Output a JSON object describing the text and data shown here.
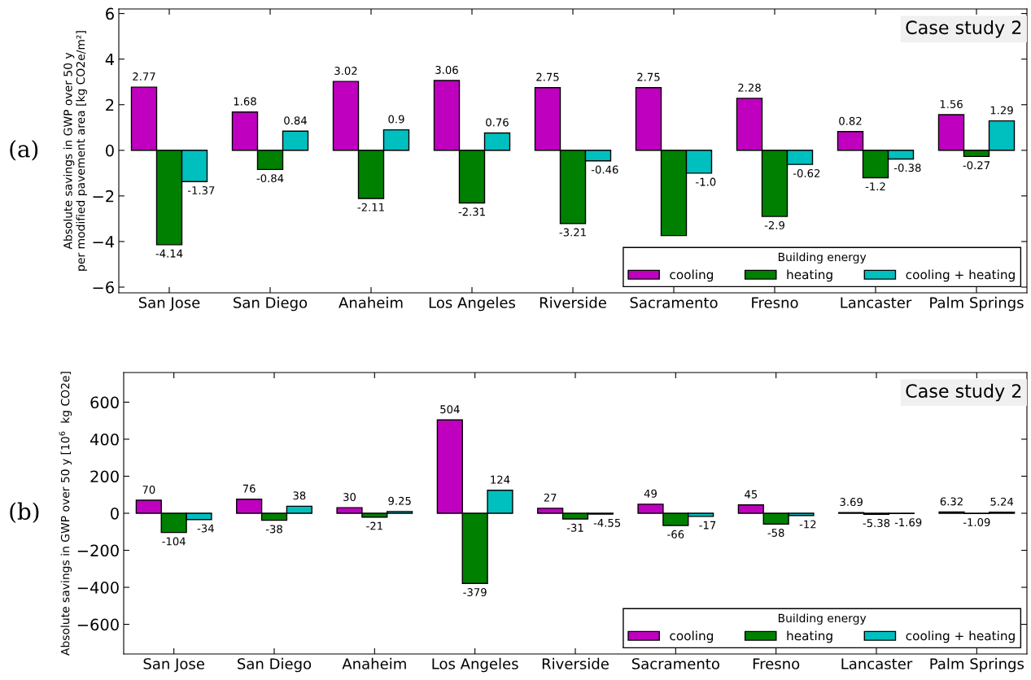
{
  "chart_data": [
    {
      "type": "bar",
      "ylabel": "Absolute savings in GWP over 50 y\nper modified pavement area [kg CO2e/m²]",
      "legend_title": "Building energy",
      "legend": "bottom right",
      "grid": false,
      "annotations": [
        "(a)",
        "Case study 2"
      ],
      "categories": [
        "San Jose",
        "San Diego",
        "Anaheim",
        "Los Angeles",
        "Riverside",
        "Sacramento",
        "Fresno",
        "Lancaster",
        "Palm Springs"
      ],
      "ylim": [
        -6.25,
        6.2
      ],
      "yticks": [
        -6,
        -4,
        -2,
        0,
        2,
        4,
        6
      ],
      "series": [
        {
          "name": "cooling",
          "color": "#bf00bf",
          "values": [
            2.77,
            1.68,
            3.02,
            3.06,
            2.75,
            2.75,
            2.28,
            0.82,
            1.56
          ],
          "value_labels": [
            "2.77",
            "1.68",
            "3.02",
            "3.06",
            "2.75",
            "2.75",
            "2.28",
            "0.82",
            "1.56"
          ]
        },
        {
          "name": "heating",
          "color": "#008000",
          "values": [
            -4.14,
            -0.84,
            -2.11,
            -2.31,
            -3.21,
            -3.74,
            -2.9,
            -1.2,
            -0.27
          ],
          "value_labels": [
            "-4.14",
            "-0.84",
            "-2.11",
            "-2.31",
            "-3.21",
            null,
            "-2.9",
            "-1.2",
            "-0.27"
          ]
        },
        {
          "name": "cooling + heating",
          "color": "#00bfbf",
          "values": [
            -1.37,
            0.84,
            0.9,
            0.76,
            -0.46,
            -1.0,
            -0.62,
            -0.38,
            1.29
          ],
          "value_labels": [
            "-1.37",
            "0.84",
            "0.9",
            "0.76",
            "-0.46",
            "-1.0",
            "-0.62",
            "-0.38",
            "1.29"
          ]
        }
      ]
    },
    {
      "type": "bar",
      "ylabel": "Absolute savings in GWP over 50 y [10$^{6}$  kg CO2e]",
      "legend_title": "Building energy",
      "legend": "bottom right",
      "grid": false,
      "annotations": [
        "(b)",
        "Case study 2"
      ],
      "categories": [
        "San Jose",
        "San Diego",
        "Anaheim",
        "Los Angeles",
        "Riverside",
        "Sacramento",
        "Fresno",
        "Lancaster",
        "Palm Springs"
      ],
      "ylim": [
        -760,
        760
      ],
      "yticks": [
        -600,
        -400,
        -200,
        0,
        200,
        400,
        600
      ],
      "series": [
        {
          "name": "cooling",
          "color": "#bf00bf",
          "values": [
            70,
            76,
            30,
            504,
            27,
            49,
            45,
            3.69,
            6.32
          ],
          "value_labels": [
            "70",
            "76",
            "30",
            "504",
            "27",
            "49",
            "45",
            "3.69",
            "6.32"
          ]
        },
        {
          "name": "heating",
          "color": "#008000",
          "values": [
            -104,
            -38,
            -21,
            -379,
            -31,
            -66,
            -58,
            -5.38,
            -1.09
          ],
          "value_labels": [
            "-104",
            "-38",
            "-21",
            "-379",
            "-31",
            "-66",
            "-58",
            "-5.38",
            "-1.09"
          ]
        },
        {
          "name": "cooling + heating",
          "color": "#00bfbf",
          "values": [
            -34,
            38,
            9.25,
            124,
            -4.55,
            -17,
            -12,
            -1.69,
            5.24
          ],
          "value_labels": [
            "-34",
            "38",
            "9.25",
            "124",
            "-4.55",
            "-17",
            "-12",
            "-1.69",
            "5.24"
          ]
        }
      ]
    }
  ]
}
